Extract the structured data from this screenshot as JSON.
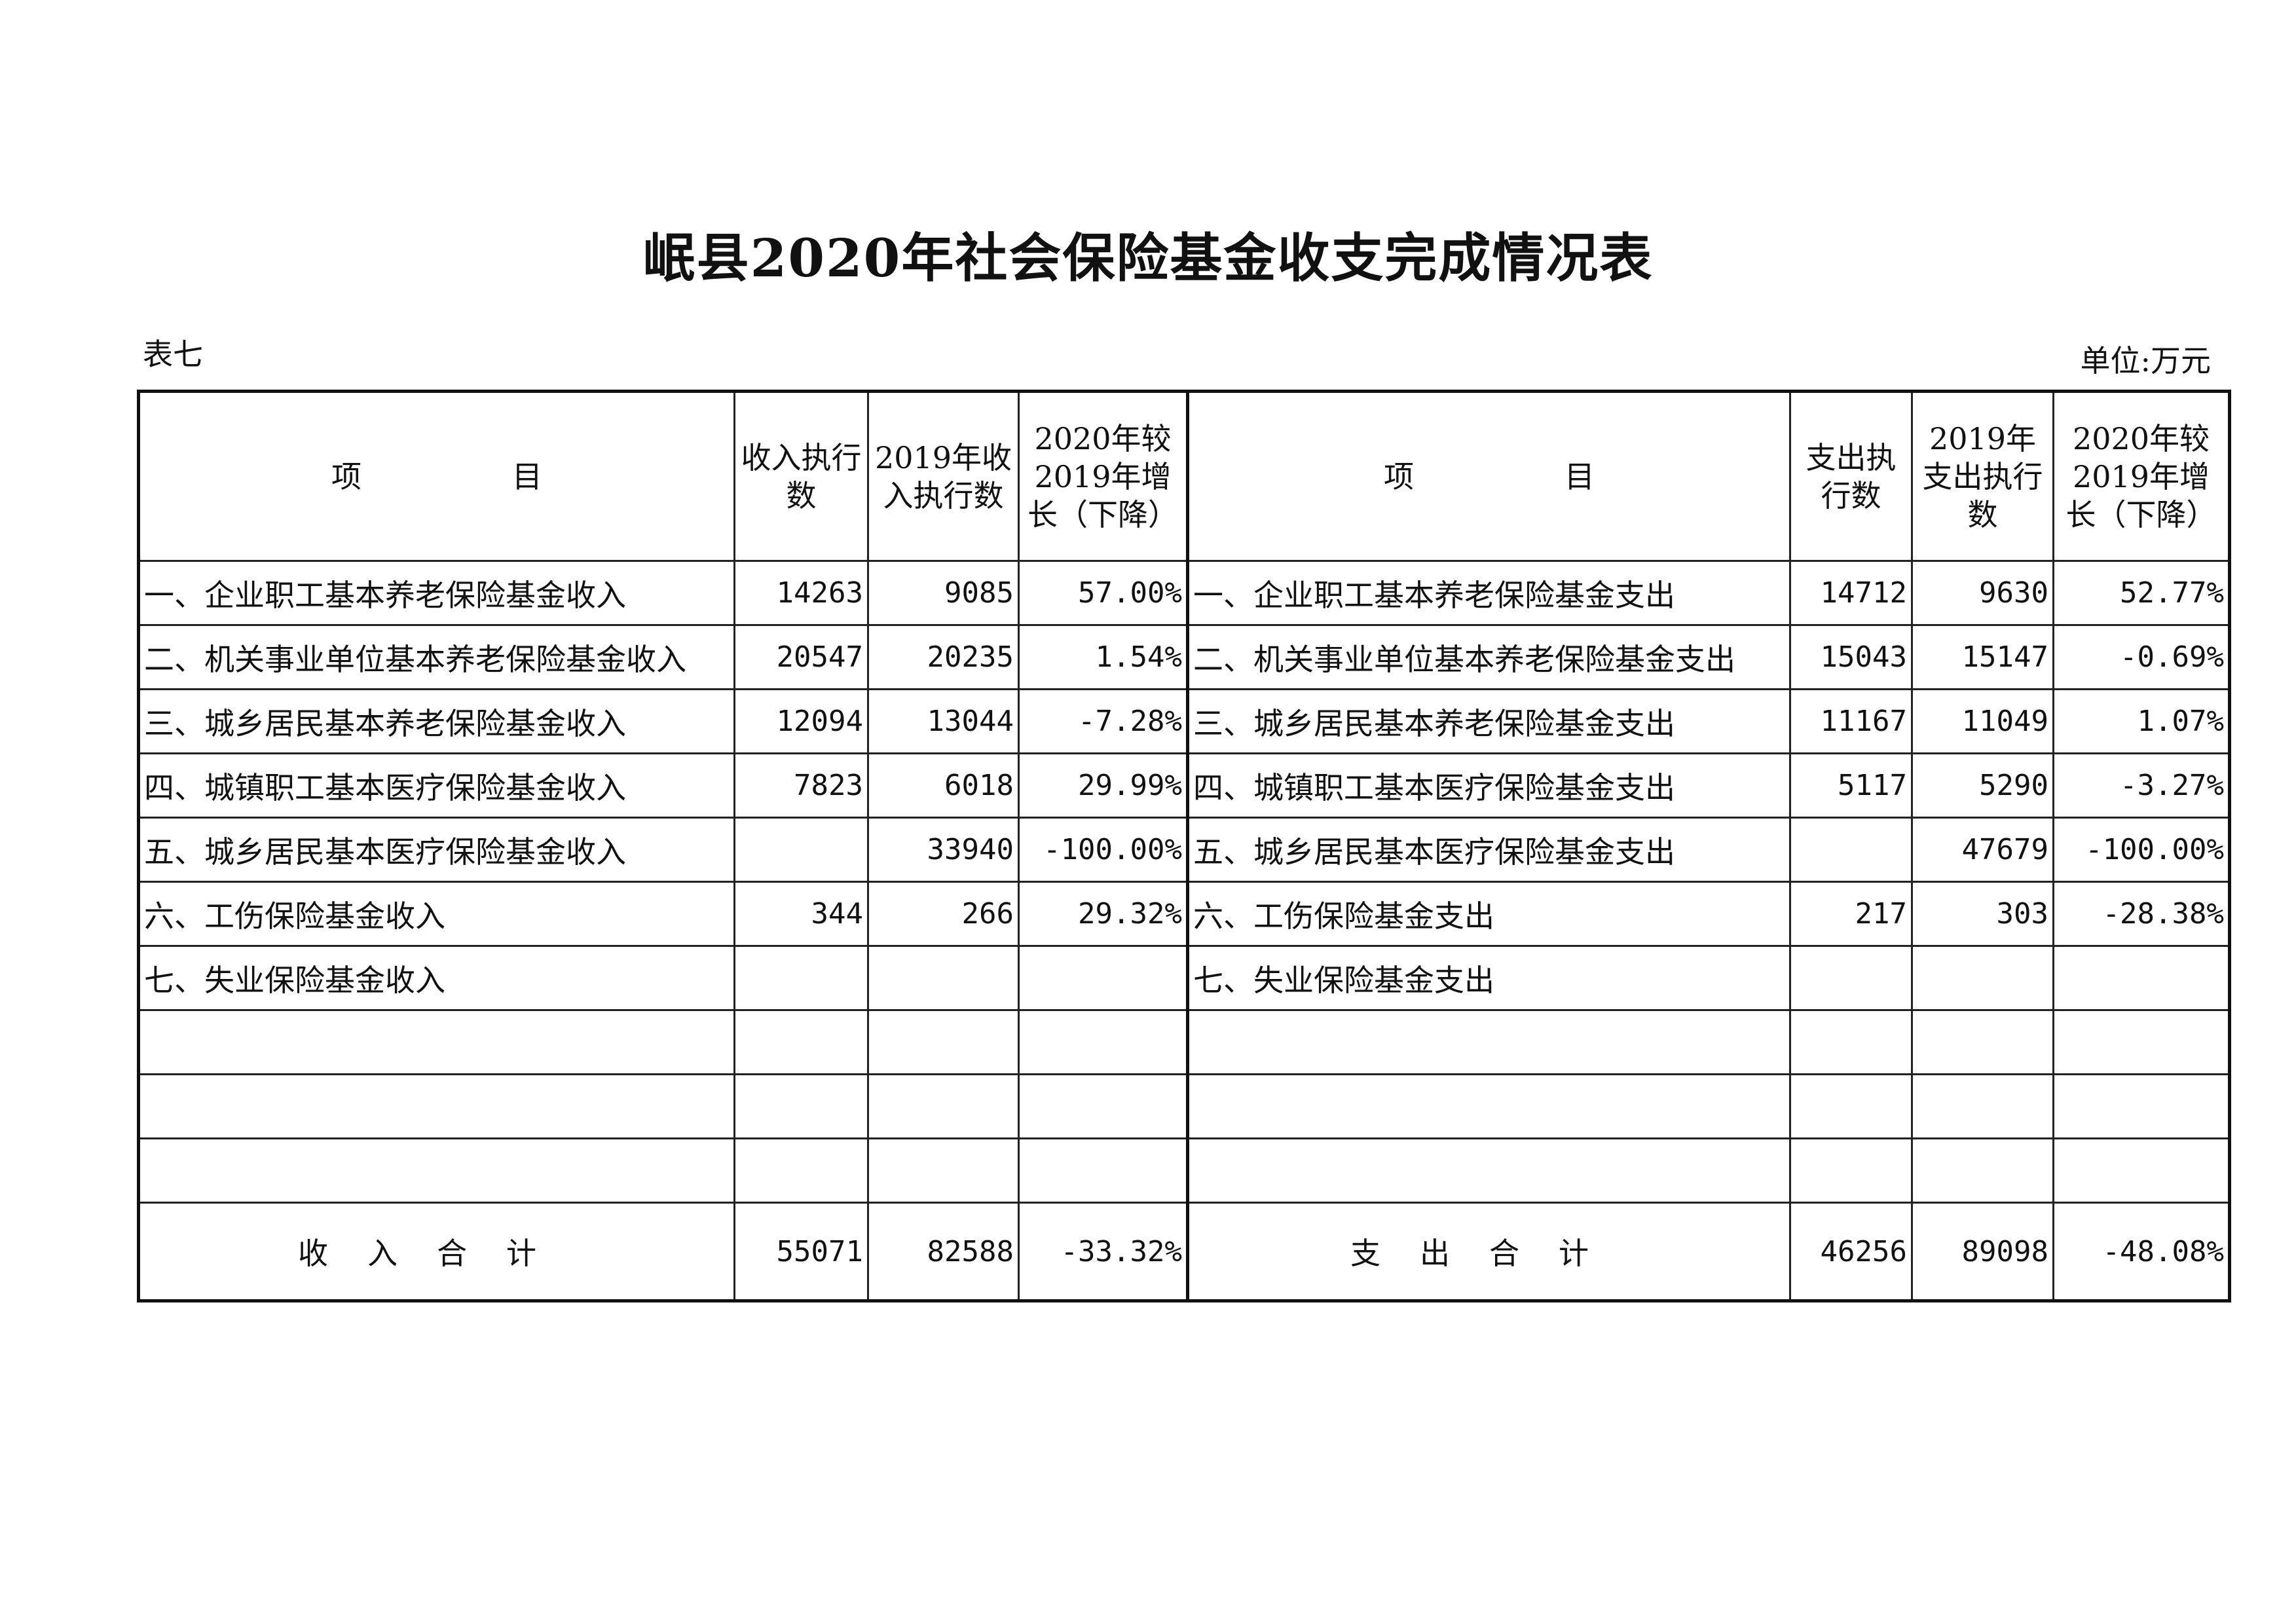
{
  "title": "岷县2020年社会保险基金收支完成情况表",
  "table_no": "表七",
  "unit": "单位:万元",
  "headers": {
    "income_item": "项　　　　　目",
    "income_exec": "收入执行数",
    "income_2019": "2019年收入执行数",
    "income_growth": "2020年较2019年增长（下降）",
    "expense_item": "项　　　　　目",
    "expense_exec": "支出执行数",
    "expense_2019": "2019年支出执行数",
    "expense_growth": "2020年较2019年增长（下降）"
  },
  "rows": [
    {
      "income_item": "一、企业职工基本养老保险基金收入",
      "income_exec": "14263",
      "income_2019": "9085",
      "income_growth": "57.00%",
      "expense_item": "一、企业职工基本养老保险基金支出",
      "expense_exec": "14712",
      "expense_2019": "9630",
      "expense_growth": "52.77%"
    },
    {
      "income_item": "二、机关事业单位基本养老保险基金收入",
      "income_exec": "20547",
      "income_2019": "20235",
      "income_growth": "1.54%",
      "expense_item": "二、机关事业单位基本养老保险基金支出",
      "expense_exec": "15043",
      "expense_2019": "15147",
      "expense_growth": "-0.69%"
    },
    {
      "income_item": "三、城乡居民基本养老保险基金收入",
      "income_exec": "12094",
      "income_2019": "13044",
      "income_growth": "-7.28%",
      "expense_item": "三、城乡居民基本养老保险基金支出",
      "expense_exec": "11167",
      "expense_2019": "11049",
      "expense_growth": "1.07%"
    },
    {
      "income_item": "四、城镇职工基本医疗保险基金收入",
      "income_exec": "7823",
      "income_2019": "6018",
      "income_growth": "29.99%",
      "expense_item": "四、城镇职工基本医疗保险基金支出",
      "expense_exec": "5117",
      "expense_2019": "5290",
      "expense_growth": "-3.27%"
    },
    {
      "income_item": "五、城乡居民基本医疗保险基金收入",
      "income_exec": "",
      "income_2019": "33940",
      "income_growth": "-100.00%",
      "expense_item": "五、城乡居民基本医疗保险基金支出",
      "expense_exec": "",
      "expense_2019": "47679",
      "expense_growth": "-100.00%"
    },
    {
      "income_item": "六、工伤保险基金收入",
      "income_exec": "344",
      "income_2019": "266",
      "income_growth": "29.32%",
      "expense_item": "六、工伤保险基金支出",
      "expense_exec": "217",
      "expense_2019": "303",
      "expense_growth": "-28.38%"
    },
    {
      "income_item": "七、失业保险基金收入",
      "income_exec": "",
      "income_2019": "",
      "income_growth": "",
      "expense_item": "七、失业保险基金支出",
      "expense_exec": "",
      "expense_2019": "",
      "expense_growth": ""
    },
    {
      "income_item": "",
      "income_exec": "",
      "income_2019": "",
      "income_growth": "",
      "expense_item": "",
      "expense_exec": "",
      "expense_2019": "",
      "expense_growth": ""
    },
    {
      "income_item": "",
      "income_exec": "",
      "income_2019": "",
      "income_growth": "",
      "expense_item": "",
      "expense_exec": "",
      "expense_2019": "",
      "expense_growth": ""
    },
    {
      "income_item": "",
      "income_exec": "",
      "income_2019": "",
      "income_growth": "",
      "expense_item": "",
      "expense_exec": "",
      "expense_2019": "",
      "expense_growth": ""
    }
  ],
  "total": {
    "income_label": "收入合计",
    "income_exec": "55071",
    "income_2019": "82588",
    "income_growth": "-33.32%",
    "expense_label": "支出合计",
    "expense_exec": "46256",
    "expense_2019": "89098",
    "expense_growth": "-48.08%"
  }
}
